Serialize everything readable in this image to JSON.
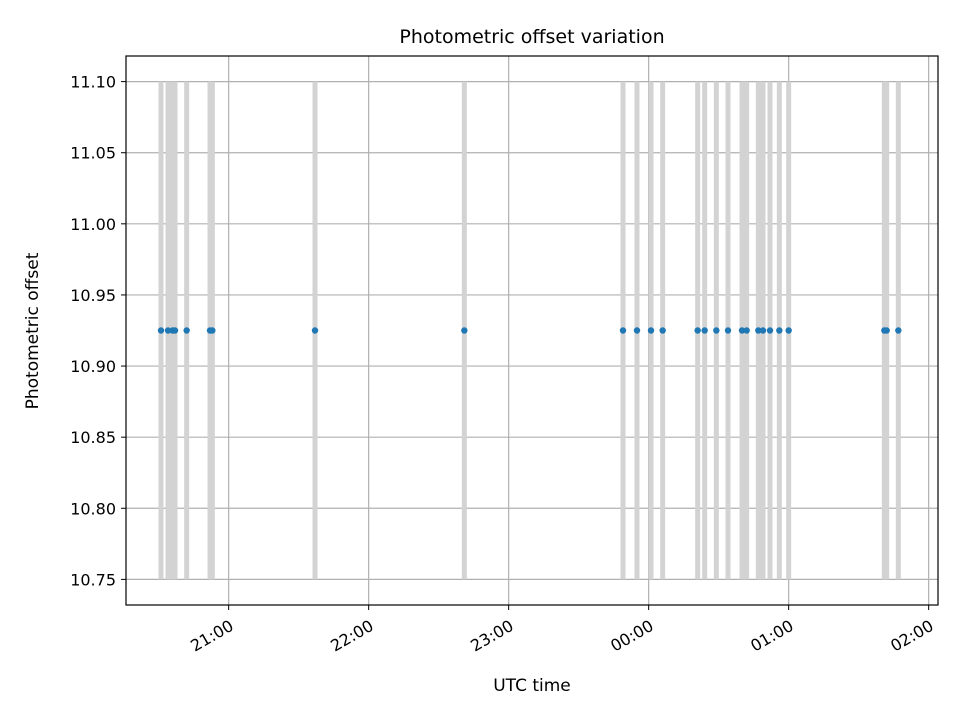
{
  "chart_data": {
    "type": "scatter",
    "title": "Photometric offset variation",
    "xlabel": "UTC time",
    "ylabel": "Photometric offset",
    "x_is_time": true,
    "xlim": [
      "20:16",
      "02:04"
    ],
    "ylim": [
      10.732,
      11.118
    ],
    "xticks": [
      "21:00",
      "22:00",
      "23:00",
      "00:00",
      "01:00",
      "02:00"
    ],
    "yticks": [
      "10.75",
      "10.80",
      "10.85",
      "10.90",
      "10.95",
      "11.00",
      "11.05",
      "11.10"
    ],
    "grid": true,
    "colors": {
      "points": "#1f77b4",
      "bands": "#d3d3d3",
      "grid": "#b0b0b0"
    },
    "bands": {
      "y_range": [
        10.75,
        11.1
      ],
      "times": [
        "20:31",
        "20:34",
        "20:36",
        "20:37",
        "20:42",
        "20:52",
        "20:53",
        "21:37",
        "22:41",
        "23:49",
        "23:55",
        "00:01",
        "00:06",
        "00:21",
        "00:24",
        "00:29",
        "00:34",
        "00:40",
        "00:42",
        "00:47",
        "00:49",
        "00:52",
        "00:56",
        "01:00",
        "01:41",
        "01:42",
        "01:47"
      ]
    },
    "points": {
      "y": 10.925,
      "times": [
        "20:31",
        "20:34",
        "20:36",
        "20:37",
        "20:42",
        "20:52",
        "20:53",
        "21:37",
        "22:41",
        "23:49",
        "23:55",
        "00:01",
        "00:06",
        "00:21",
        "00:24",
        "00:29",
        "00:34",
        "00:40",
        "00:42",
        "00:47",
        "00:49",
        "00:52",
        "00:56",
        "01:00",
        "01:41",
        "01:42",
        "01:47"
      ]
    }
  }
}
